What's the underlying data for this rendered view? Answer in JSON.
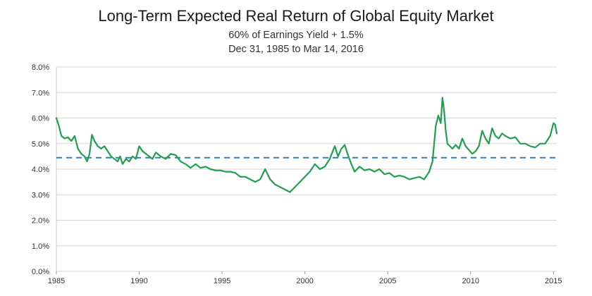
{
  "chart_data": {
    "type": "line",
    "title": "Long-Term Expected Real Return of Global Equity Market",
    "subtitle": "60% of Earnings Yield + 1.5%",
    "date_range": "Dec 31, 1985 to Mar 14, 2016",
    "xlabel": "",
    "ylabel": "",
    "x_ticks": [
      "1985",
      "1990",
      "1995",
      "2000",
      "2005",
      "2010",
      "2015"
    ],
    "y_ticks": [
      "0.0%",
      "1.0%",
      "2.0%",
      "3.0%",
      "4.0%",
      "5.0%",
      "6.0%",
      "7.0%",
      "8.0%"
    ],
    "xlim": [
      1985,
      2015.2
    ],
    "ylim": [
      0,
      8
    ],
    "grid": true,
    "series": [
      {
        "color": "#20a04e",
        "x": [
          1985.0,
          1985.15,
          1985.3,
          1985.5,
          1985.7,
          1985.9,
          1986.1,
          1986.3,
          1986.5,
          1986.7,
          1986.85,
          1987.0,
          1987.15,
          1987.3,
          1987.5,
          1987.7,
          1987.9,
          1988.1,
          1988.3,
          1988.5,
          1988.7,
          1988.85,
          1989.0,
          1989.2,
          1989.4,
          1989.6,
          1989.8,
          1990.0,
          1990.2,
          1990.4,
          1990.6,
          1990.8,
          1991.0,
          1991.3,
          1991.6,
          1991.9,
          1992.2,
          1992.5,
          1992.8,
          1993.1,
          1993.4,
          1993.7,
          1994.0,
          1994.3,
          1994.6,
          1994.9,
          1995.2,
          1995.5,
          1995.8,
          1996.1,
          1996.4,
          1996.7,
          1997.0,
          1997.3,
          1997.6,
          1997.9,
          1998.2,
          1998.5,
          1998.8,
          1999.1,
          1999.4,
          1999.7,
          2000.0,
          2000.3,
          2000.6,
          2000.9,
          2001.2,
          2001.5,
          2001.8,
          2002.0,
          2002.2,
          2002.4,
          2002.6,
          2002.8,
          2003.0,
          2003.3,
          2003.6,
          2003.9,
          2004.2,
          2004.5,
          2004.8,
          2005.1,
          2005.4,
          2005.7,
          2006.0,
          2006.3,
          2006.6,
          2006.9,
          2007.2,
          2007.5,
          2007.7,
          2007.9,
          2008.05,
          2008.2,
          2008.3,
          2008.4,
          2008.5,
          2008.6,
          2008.75,
          2008.9,
          2009.1,
          2009.3,
          2009.5,
          2009.7,
          2009.9,
          2010.1,
          2010.3,
          2010.5,
          2010.7,
          2010.9,
          2011.1,
          2011.3,
          2011.5,
          2011.7,
          2011.9,
          2012.1,
          2012.4,
          2012.7,
          2013.0,
          2013.3,
          2013.6,
          2013.9,
          2014.2,
          2014.5,
          2014.8,
          2015.0,
          2015.1,
          2015.2
        ],
        "y": [
          6.0,
          5.7,
          5.3,
          5.2,
          5.25,
          5.1,
          5.3,
          4.8,
          4.6,
          4.5,
          4.3,
          4.6,
          5.35,
          5.1,
          4.9,
          4.8,
          4.9,
          4.7,
          4.5,
          4.4,
          4.3,
          4.5,
          4.2,
          4.4,
          4.3,
          4.5,
          4.4,
          4.9,
          4.7,
          4.6,
          4.5,
          4.4,
          4.65,
          4.5,
          4.4,
          4.6,
          4.55,
          4.3,
          4.2,
          4.05,
          4.2,
          4.05,
          4.1,
          4.0,
          3.95,
          3.95,
          3.9,
          3.9,
          3.85,
          3.7,
          3.7,
          3.6,
          3.5,
          3.6,
          4.0,
          3.6,
          3.4,
          3.3,
          3.2,
          3.1,
          3.3,
          3.5,
          3.7,
          3.9,
          4.2,
          4.0,
          4.1,
          4.4,
          4.9,
          4.5,
          4.8,
          4.95,
          4.55,
          4.2,
          3.9,
          4.1,
          3.95,
          4.0,
          3.9,
          4.0,
          3.8,
          3.85,
          3.7,
          3.75,
          3.7,
          3.6,
          3.65,
          3.7,
          3.6,
          3.9,
          4.3,
          5.7,
          6.1,
          5.8,
          6.8,
          6.3,
          5.5,
          5.0,
          4.9,
          4.8,
          4.95,
          4.8,
          5.2,
          4.9,
          4.75,
          4.6,
          4.7,
          4.9,
          5.5,
          5.2,
          5.0,
          5.6,
          5.3,
          5.2,
          5.4,
          5.3,
          5.2,
          5.25,
          5.0,
          5.0,
          4.9,
          4.85,
          5.0,
          5.0,
          5.3,
          5.8,
          5.75,
          5.4
        ]
      }
    ],
    "reference_line": {
      "y": 4.45,
      "color": "#2a7fc0",
      "style": "dashed"
    }
  }
}
